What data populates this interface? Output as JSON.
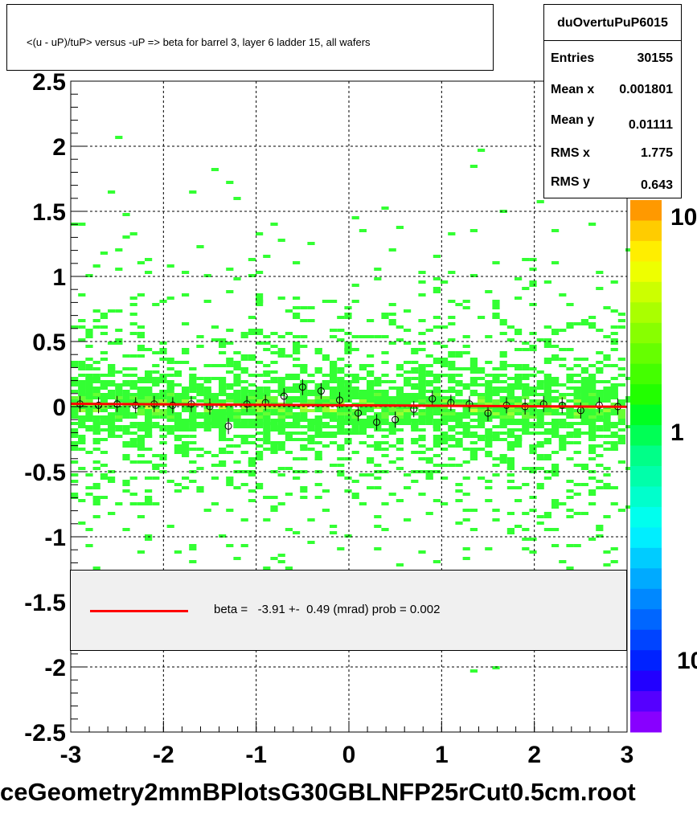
{
  "title": "<(u - uP)/tuP> versus  -uP => beta for barrel 3, layer 6 ladder 15, all wafers",
  "stats": {
    "name": "duOvertuPuP6015",
    "rows": [
      {
        "label": "Entries",
        "value": "30155"
      },
      {
        "label": "Mean x",
        "value": "0.001801"
      },
      {
        "label": "Mean y",
        "value": "0.01111"
      },
      {
        "label": "RMS x",
        "value": "1.775"
      },
      {
        "label": "RMS y",
        "value": "0.643"
      }
    ]
  },
  "legend": {
    "text": "beta =   -3.91 +-  0.49 (mrad) prob = 0.002",
    "line_color": "#ff0000"
  },
  "file_label": "ceGeometry2mmBPlotsG30GBLNFP25rCut0.5cm.root",
  "chart_data": {
    "type": "scatter",
    "x_ticks": [
      "-3",
      "-2",
      "-1",
      "0",
      "1",
      "2",
      "3"
    ],
    "y_ticks": [
      "2.5",
      "2",
      "1.5",
      "1",
      "0.5",
      "0",
      "-0.5",
      "-1",
      "-1.5",
      "-2",
      "-2.5"
    ],
    "xlim": [
      -3,
      3
    ],
    "ylim": [
      -2.5,
      2.5
    ],
    "grid": true,
    "colorbar_labels": [
      "10",
      "1",
      "10"
    ],
    "fit": {
      "slope": -0.00391,
      "intercept": 0.01,
      "color": "#ff0000"
    },
    "profile_points": [
      {
        "x": -2.9,
        "y": 0.02
      },
      {
        "x": -2.7,
        "y": 0.01
      },
      {
        "x": -2.5,
        "y": 0.02
      },
      {
        "x": -2.3,
        "y": 0.01
      },
      {
        "x": -2.1,
        "y": 0.02
      },
      {
        "x": -1.9,
        "y": 0.01
      },
      {
        "x": -1.7,
        "y": 0.02
      },
      {
        "x": -1.5,
        "y": 0.0
      },
      {
        "x": -1.3,
        "y": -0.15
      },
      {
        "x": -1.1,
        "y": 0.02
      },
      {
        "x": -0.9,
        "y": 0.03
      },
      {
        "x": -0.7,
        "y": 0.08
      },
      {
        "x": -0.5,
        "y": 0.15
      },
      {
        "x": -0.3,
        "y": 0.12
      },
      {
        "x": -0.1,
        "y": 0.05
      },
      {
        "x": 0.1,
        "y": -0.05
      },
      {
        "x": 0.3,
        "y": -0.12
      },
      {
        "x": 0.5,
        "y": -0.1
      },
      {
        "x": 0.7,
        "y": -0.02
      },
      {
        "x": 0.9,
        "y": 0.06
      },
      {
        "x": 1.1,
        "y": 0.03
      },
      {
        "x": 1.3,
        "y": 0.02
      },
      {
        "x": 1.5,
        "y": -0.05
      },
      {
        "x": 1.7,
        "y": 0.01
      },
      {
        "x": 1.9,
        "y": 0.0
      },
      {
        "x": 2.1,
        "y": 0.02
      },
      {
        "x": 2.3,
        "y": 0.01
      },
      {
        "x": 2.5,
        "y": -0.03
      },
      {
        "x": 2.7,
        "y": 0.01
      },
      {
        "x": 2.9,
        "y": 0.0
      }
    ]
  }
}
